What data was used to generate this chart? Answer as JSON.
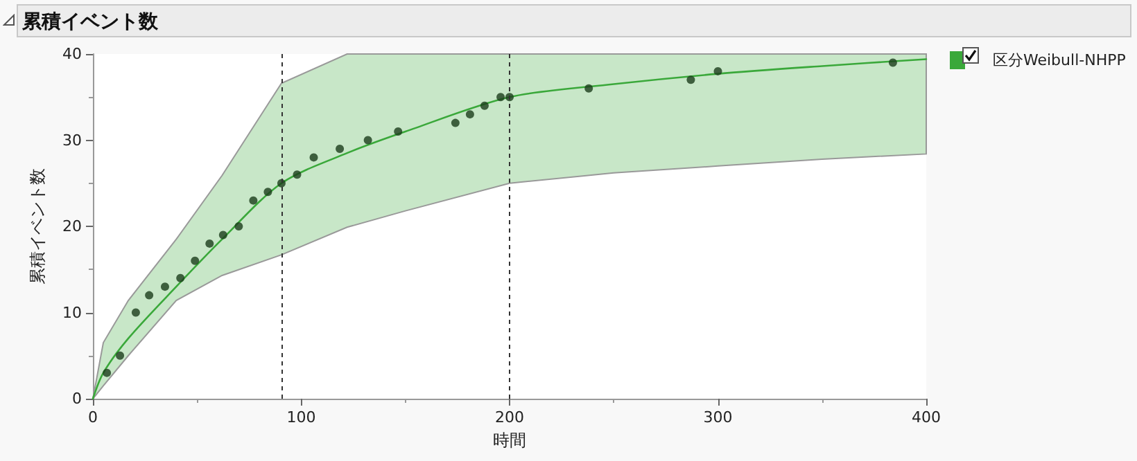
{
  "chart_data": {
    "type": "scatter",
    "title": "累積イベント数",
    "xlabel": "時間",
    "ylabel": "累積イベント数",
    "xlim": [
      0,
      400
    ],
    "xticks": [
      0,
      100,
      200,
      300,
      400
    ],
    "ylim": [
      0,
      40
    ],
    "yticks": [
      0,
      10,
      20,
      30,
      40
    ],
    "grid": false,
    "legend": "top right",
    "series": [
      {
        "color": "#1b3d1b",
        "marker": "circle",
        "x": [
          6.7,
          13,
          20.6,
          27,
          34.6,
          42,
          49,
          56,
          62.5,
          70,
          77,
          84,
          90.5,
          98,
          106,
          118.5,
          132,
          146.5,
          174,
          181,
          188,
          195.7,
          200,
          238,
          287,
          300,
          384
        ],
        "values": [
          3,
          5,
          10,
          12,
          13,
          14,
          16,
          18,
          19,
          20,
          23,
          24,
          25,
          26,
          28,
          29,
          30,
          31,
          32,
          33,
          34,
          35,
          35,
          36,
          37,
          38,
          39
        ]
      },
      {
        "type": "line",
        "name": "区分Weibull-NHPP",
        "color": "#3aa83a",
        "marker": "none",
        "x": [
          0,
          5,
          17,
          40,
          62,
          90.5,
          122,
          150,
          200,
          250,
          300,
          350,
          400
        ],
        "values": [
          0,
          3,
          7,
          13,
          18.5,
          25,
          28.5,
          31,
          35,
          36.5,
          37.7,
          38.6,
          39.4
        ],
        "lower": [
          0,
          1.5,
          5,
          11.4,
          14.3,
          16.7,
          19.9,
          21.8,
          25,
          26.2,
          27,
          27.8,
          28.4
        ],
        "upper": [
          0,
          6.5,
          11.4,
          18.5,
          25.9,
          36.6,
          40,
          40,
          40,
          40,
          40,
          40,
          40
        ]
      }
    ],
    "ref_lines": [
      {
        "axis": "x",
        "value": 91,
        "color": "#333333",
        "line_style": "dashed"
      },
      {
        "axis": "x",
        "value": 200,
        "color": "#333333",
        "line_style": "dashed"
      }
    ]
  }
}
